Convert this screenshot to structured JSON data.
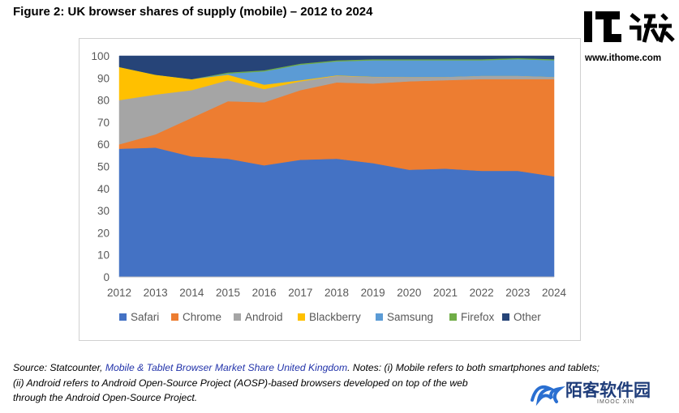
{
  "figure": {
    "title": "Figure 2: UK browser shares of supply (mobile) – 2012 to 2024"
  },
  "chart_data": {
    "type": "area",
    "stacked": true,
    "x": [
      "2012",
      "2013",
      "2014",
      "2015",
      "2016",
      "2017",
      "2018",
      "2019",
      "2020",
      "2021",
      "2022",
      "2023",
      "2024"
    ],
    "ylim": [
      0,
      100
    ],
    "yticks": [
      "0",
      "10",
      "20",
      "30",
      "40",
      "50",
      "60",
      "70",
      "80",
      "90",
      "100"
    ],
    "grid": false,
    "legend_position": "bottom",
    "series": [
      {
        "name": "Safari",
        "color": "#4472c4",
        "values": [
          58,
          58.5,
          54.5,
          53.5,
          50.5,
          53,
          53.5,
          51.5,
          48.5,
          49,
          48,
          48,
          45.5
        ]
      },
      {
        "name": "Chrome",
        "color": "#ed7d31",
        "values": [
          2,
          6,
          17.5,
          26,
          28.5,
          31.5,
          34.5,
          36,
          40,
          40,
          41.5,
          41.5,
          44
        ]
      },
      {
        "name": "Android",
        "color": "#a5a5a5",
        "values": [
          20,
          18,
          12.5,
          9.5,
          6,
          4,
          3,
          3,
          2,
          1.5,
          1.5,
          1.5,
          1
        ]
      },
      {
        "name": "Blackberry",
        "color": "#ffc000",
        "values": [
          15,
          9,
          5,
          2.5,
          2,
          0.5,
          0.2,
          0.1,
          0,
          0,
          0,
          0,
          0
        ]
      },
      {
        "name": "Samsung",
        "color": "#5b9bd5",
        "values": [
          0,
          0,
          0,
          0.5,
          6,
          7,
          6.3,
          7.4,
          7.5,
          7.5,
          7,
          7.5,
          7.5
        ]
      },
      {
        "name": "Firefox",
        "color": "#70ad47",
        "values": [
          0,
          0,
          0,
          0.5,
          0.5,
          0.5,
          0.5,
          0.5,
          0.5,
          0.5,
          0.5,
          0.5,
          0.5
        ]
      },
      {
        "name": "Other",
        "color": "#264478",
        "values": [
          5,
          8.5,
          10.5,
          7.5,
          6.5,
          3.5,
          2,
          1.5,
          1.5,
          1.5,
          1.5,
          1,
          1.5
        ]
      }
    ]
  },
  "source_note": {
    "prefix": "Source: Statcounter, ",
    "link_text": "Mobile & Tablet Browser Market Share United Kingdom",
    "line1_rest": ". Notes: (i) Mobile refers to both smartphones and tablets;",
    "line2": "(ii) Android refers to Android Open-Source Project (AOSP)-based browsers developed on top of the web",
    "line3": "through the Android Open-Source Project."
  },
  "watermarks": {
    "ithome_logo_text": "IT之家",
    "ithome_url": "www.ithome.com",
    "imooc_text": "陌客软件园",
    "imooc_sub": "IMOOC XIN"
  }
}
